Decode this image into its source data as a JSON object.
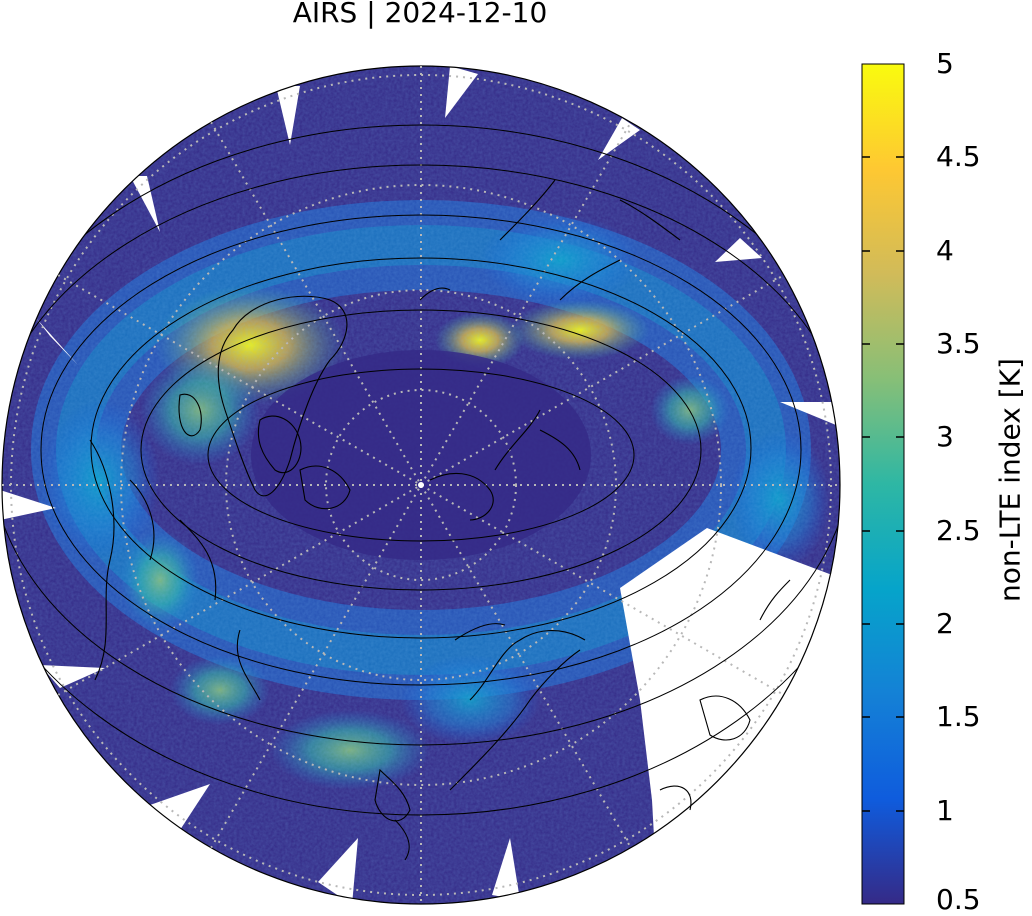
{
  "title": "AIRS | 2024-12-10",
  "colorbar": {
    "label": "non-LTE index [K]",
    "min": 0.5,
    "max": 5,
    "ticks": [
      "5",
      "4.5",
      "4",
      "3.5",
      "3",
      "2.5",
      "2",
      "1.5",
      "1",
      "0.5"
    ],
    "colors": [
      "#352a87",
      "#0f5cdd",
      "#1481d6",
      "#06a4ca",
      "#2eb7a4",
      "#87bf77",
      "#d1bb59",
      "#fec832",
      "#f9fb0e"
    ]
  },
  "map": {
    "projection": "north polar stereographic",
    "background_color": "#352a87",
    "missing_color": "#ffffff"
  }
}
